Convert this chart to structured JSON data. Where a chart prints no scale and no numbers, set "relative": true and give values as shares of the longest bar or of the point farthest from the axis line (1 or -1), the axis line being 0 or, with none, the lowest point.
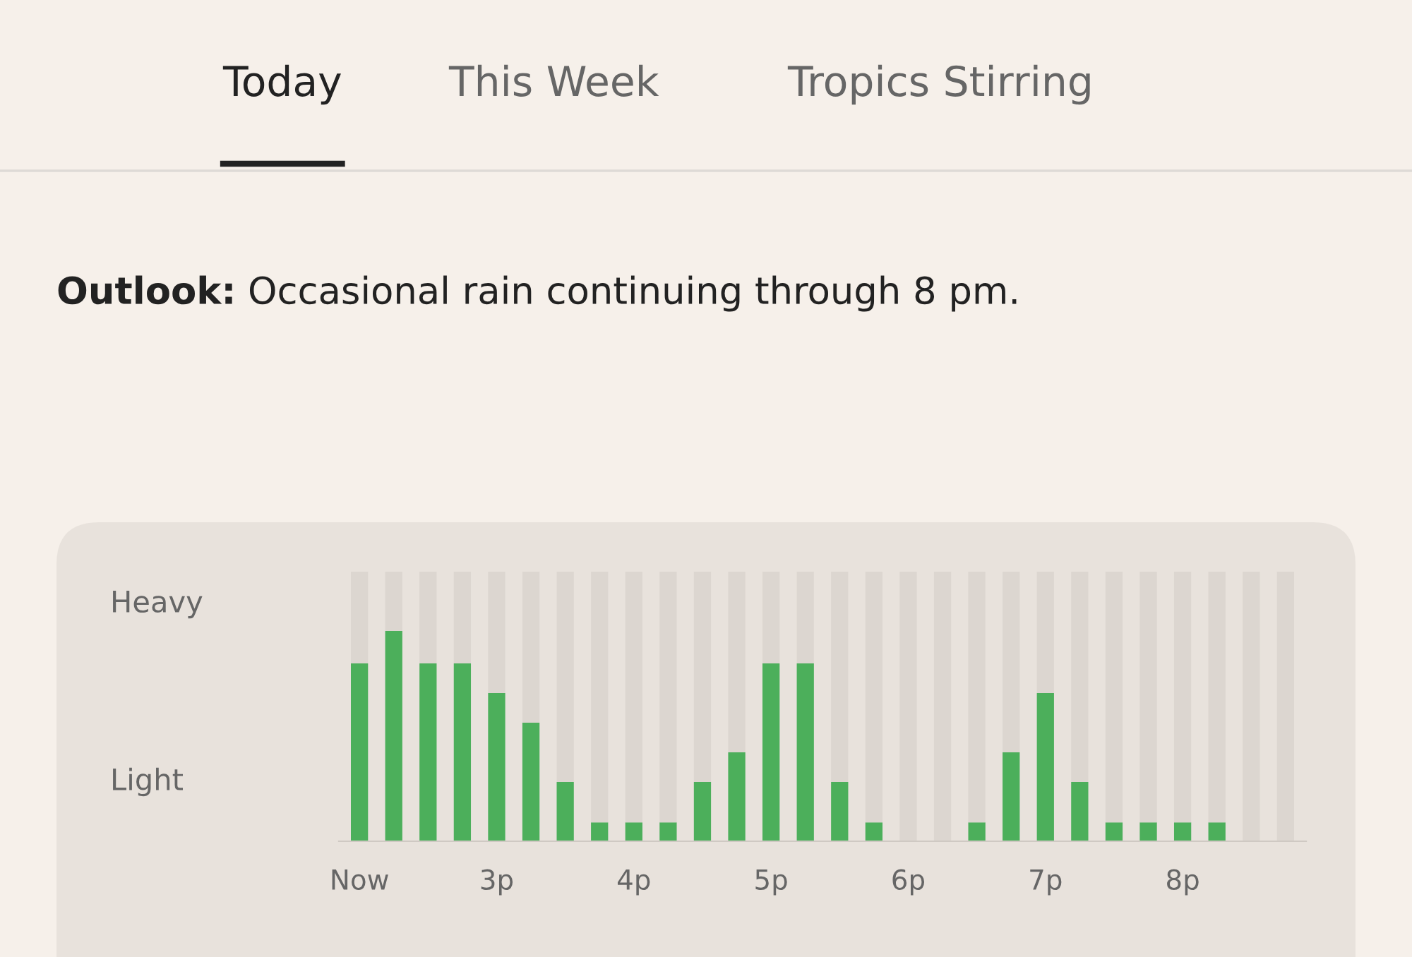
{
  "chart_data": {
    "type": "bar",
    "title": "Outlook:",
    "subtitle": "Occasional rain continuing through 8 pm.",
    "annotations": [
      "Today",
      "This Week",
      "Tropics Stirring",
      "Heavy",
      "Light"
    ],
    "stacked": true,
    "relative": true,
    "categories": [
      "Now",
      null,
      null,
      null,
      "3p",
      null,
      null,
      null,
      "4p",
      null,
      null,
      null,
      "5p",
      null,
      null,
      null,
      "6p",
      null,
      null,
      null,
      "7p",
      null,
      null,
      null,
      "8p",
      null,
      null,
      null
    ],
    "series": [
      {
        "color": "#4caf5b",
        "values": [
          0.66,
          0.78,
          0.66,
          0.66,
          0.55,
          0.44,
          0.22,
          0.07,
          0.07,
          0.07,
          0.22,
          0.33,
          0.66,
          0.66,
          0.22,
          0.07,
          null,
          null,
          0.07,
          0.33,
          0.55,
          0.22,
          0.07,
          0.07,
          0.07,
          0.07,
          null,
          null
        ]
      },
      {
        "color": "#dcd6d0",
        "values": [
          0.34,
          0.22,
          0.34,
          0.34,
          0.45,
          0.56,
          0.78,
          0.93,
          0.93,
          0.93,
          0.78,
          0.67,
          0.34,
          0.34,
          0.78,
          0.93,
          1,
          1,
          0.93,
          0.67,
          0.45,
          0.78,
          0.93,
          0.93,
          0.93,
          0.93,
          1,
          1
        ]
      }
    ],
    "grid": false,
    "legend": false
  }
}
